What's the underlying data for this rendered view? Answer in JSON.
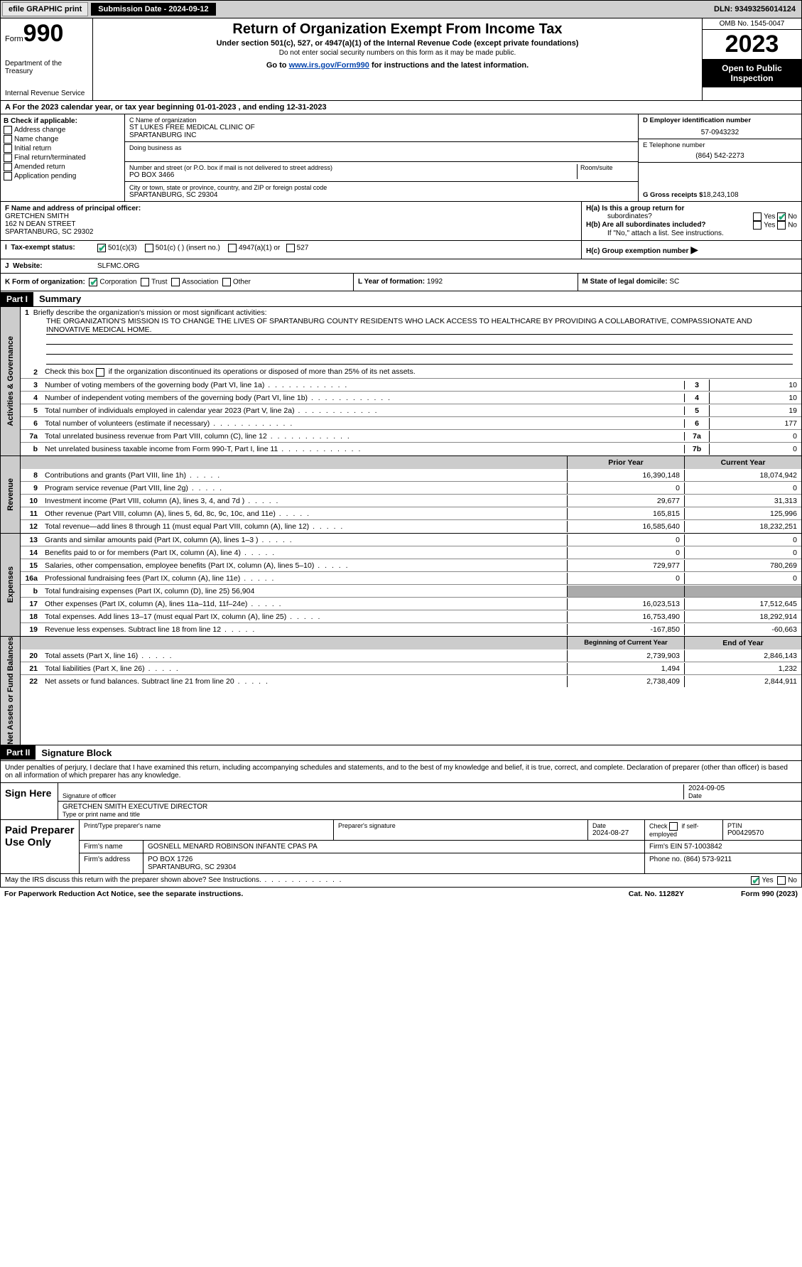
{
  "topbar": {
    "efile_label": "efile GRAPHIC print",
    "submission_label": "Submission Date - 2024-09-12",
    "dln_label": "DLN: 93493256014124"
  },
  "header": {
    "form_label": "Form",
    "form_number": "990",
    "title": "Return of Organization Exempt From Income Tax",
    "subtitle": "Under section 501(c), 527, or 4947(a)(1) of the Internal Revenue Code (except private foundations)",
    "note": "Do not enter social security numbers on this form as it may be made public.",
    "goto_prefix": "Go to ",
    "goto_link": "www.irs.gov/Form990",
    "goto_suffix": " for instructions and the latest information.",
    "dept": "Department of the Treasury",
    "irs": "Internal Revenue Service",
    "omb": "OMB No. 1545-0047",
    "year": "2023",
    "inspect1": "Open to Public",
    "inspect2": "Inspection"
  },
  "period": {
    "prefix": "A  For the 2023 calendar year, or tax year beginning ",
    "start": "01-01-2023",
    "mid": " , and ending ",
    "end": "12-31-2023"
  },
  "boxB": {
    "label": "B Check if applicable:",
    "opts": [
      "Address change",
      "Name change",
      "Initial return",
      "Final return/terminated",
      "Amended return",
      "Application pending"
    ]
  },
  "boxC": {
    "name_label": "C Name of organization",
    "name1": "ST LUKES FREE MEDICAL CLINIC OF",
    "name2": "SPARTANBURG INC",
    "dba_label": "Doing business as",
    "street_label": "Number and street (or P.O. box if mail is not delivered to street address)",
    "room_label": "Room/suite",
    "street": "PO BOX 3466",
    "city_label": "City or town, state or province, country, and ZIP or foreign postal code",
    "city": "SPARTANBURG, SC  29304"
  },
  "boxD": {
    "label": "D Employer identification number",
    "value": "57-0943232"
  },
  "boxE": {
    "label": "E Telephone number",
    "value": "(864) 542-2273"
  },
  "boxG": {
    "label": "G Gross receipts $",
    "value": "18,243,108"
  },
  "boxF": {
    "label": "F Name and address of principal officer:",
    "name": "GRETCHEN SMITH",
    "addr1": "162 N DEAN STREET",
    "addr2": "SPARTANBURG, SC  29302"
  },
  "boxH": {
    "a_label": "H(a)  Is this a group return for",
    "a_label2": "subordinates?",
    "b_label": "H(b)  Are all subordinates included?",
    "b_note": "If \"No,\" attach a list. See instructions.",
    "c_label": "H(c)  Group exemption number ",
    "yes": "Yes",
    "no": "No"
  },
  "boxI": {
    "label": "Tax-exempt status:",
    "c3": "501(c)(3)",
    "c_ins": "501(c) (  ) (insert no.)",
    "a1": "4947(a)(1) or",
    "s527": "527"
  },
  "boxJ": {
    "label": "Website:",
    "value": "SLFMC.ORG"
  },
  "boxK": {
    "label": "K Form of organization:",
    "corp": "Corporation",
    "trust": "Trust",
    "assoc": "Association",
    "other": "Other"
  },
  "boxL": {
    "label": "L Year of formation: ",
    "value": "1992"
  },
  "boxM": {
    "label": "M State of legal domicile: ",
    "value": "SC"
  },
  "parts": {
    "p1": "Part I",
    "p1_title": "Summary",
    "p2": "Part II",
    "p2_title": "Signature Block"
  },
  "summary": {
    "line1_label": "Briefly describe the organization's mission or most significant activities:",
    "mission": "THE ORGANIZATION'S MISSION IS TO CHANGE THE LIVES OF SPARTANBURG COUNTY RESIDENTS WHO LACK ACCESS TO HEALTHCARE BY PROVIDING A COLLABORATIVE, COMPASSIONATE AND INNOVATIVE MEDICAL HOME.",
    "line2": "Check this box      if the organization discontinued its operations or disposed of more than 25% of its net assets.",
    "lines": [
      {
        "n": "3",
        "desc": "Number of voting members of the governing body (Part VI, line 1a)",
        "box": "3",
        "val": "10"
      },
      {
        "n": "4",
        "desc": "Number of independent voting members of the governing body (Part VI, line 1b)",
        "box": "4",
        "val": "10"
      },
      {
        "n": "5",
        "desc": "Total number of individuals employed in calendar year 2023 (Part V, line 2a)",
        "box": "5",
        "val": "19"
      },
      {
        "n": "6",
        "desc": "Total number of volunteers (estimate if necessary)",
        "box": "6",
        "val": "177"
      },
      {
        "n": "7a",
        "desc": "Total unrelated business revenue from Part VIII, column (C), line 12",
        "box": "7a",
        "val": "0"
      },
      {
        "n": "b",
        "desc": "Net unrelated business taxable income from Form 990-T, Part I, line 11",
        "box": "7b",
        "val": "0"
      }
    ],
    "col_prior": "Prior Year",
    "col_current": "Current Year",
    "rev": [
      {
        "n": "8",
        "desc": "Contributions and grants (Part VIII, line 1h)",
        "p": "16,390,148",
        "c": "18,074,942"
      },
      {
        "n": "9",
        "desc": "Program service revenue (Part VIII, line 2g)",
        "p": "0",
        "c": "0"
      },
      {
        "n": "10",
        "desc": "Investment income (Part VIII, column (A), lines 3, 4, and 7d )",
        "p": "29,677",
        "c": "31,313"
      },
      {
        "n": "11",
        "desc": "Other revenue (Part VIII, column (A), lines 5, 6d, 8c, 9c, 10c, and 11e)",
        "p": "165,815",
        "c": "125,996"
      },
      {
        "n": "12",
        "desc": "Total revenue—add lines 8 through 11 (must equal Part VIII, column (A), line 12)",
        "p": "16,585,640",
        "c": "18,232,251"
      }
    ],
    "exp": [
      {
        "n": "13",
        "desc": "Grants and similar amounts paid (Part IX, column (A), lines 1–3 )",
        "p": "0",
        "c": "0"
      },
      {
        "n": "14",
        "desc": "Benefits paid to or for members (Part IX, column (A), line 4)",
        "p": "0",
        "c": "0"
      },
      {
        "n": "15",
        "desc": "Salaries, other compensation, employee benefits (Part IX, column (A), lines 5–10)",
        "p": "729,977",
        "c": "780,269"
      },
      {
        "n": "16a",
        "desc": "Professional fundraising fees (Part IX, column (A), line 11e)",
        "p": "0",
        "c": "0"
      },
      {
        "n": "b",
        "desc": "Total fundraising expenses (Part IX, column (D), line 25) 56,904",
        "grey": true
      },
      {
        "n": "17",
        "desc": "Other expenses (Part IX, column (A), lines 11a–11d, 11f–24e)",
        "p": "16,023,513",
        "c": "17,512,645"
      },
      {
        "n": "18",
        "desc": "Total expenses. Add lines 13–17 (must equal Part IX, column (A), line 25)",
        "p": "16,753,490",
        "c": "18,292,914"
      },
      {
        "n": "19",
        "desc": "Revenue less expenses. Subtract line 18 from line 12",
        "p": "-167,850",
        "c": "-60,663"
      }
    ],
    "col_begin": "Beginning of Current Year",
    "col_end": "End of Year",
    "net": [
      {
        "n": "20",
        "desc": "Total assets (Part X, line 16)",
        "p": "2,739,903",
        "c": "2,846,143"
      },
      {
        "n": "21",
        "desc": "Total liabilities (Part X, line 26)",
        "p": "1,494",
        "c": "1,232"
      },
      {
        "n": "22",
        "desc": "Net assets or fund balances. Subtract line 21 from line 20",
        "p": "2,738,409",
        "c": "2,844,911"
      }
    ]
  },
  "side_labels": {
    "gov": "Activities & Governance",
    "rev": "Revenue",
    "exp": "Expenses",
    "net": "Net Assets or Fund Balances"
  },
  "sig": {
    "perjury": "Under penalties of perjury, I declare that I have examined this return, including accompanying schedules and statements, and to the best of my knowledge and belief, it is true, correct, and complete. Declaration of preparer (other than officer) is based on all information of which preparer has any knowledge.",
    "sign_here": "Sign Here",
    "sig_officer_label": "Signature of officer",
    "date_label": "Date",
    "date1": "2024-09-05",
    "officer_name": "GRETCHEN SMITH  EXECUTIVE DIRECTOR",
    "type_label": "Type or print name and title",
    "paid_label": "Paid Preparer Use Only",
    "prep_name_label": "Print/Type preparer's name",
    "prep_sig_label": "Preparer's signature",
    "date2_label": "Date",
    "date2": "2024-08-27",
    "self_emp": "Check       if self-employed",
    "ptin_label": "PTIN",
    "ptin": "P00429570",
    "firm_name_label": "Firm's name",
    "firm_name": "GOSNELL MENARD ROBINSON INFANTE CPAS PA",
    "firm_ein_label": "Firm's EIN",
    "firm_ein": "57-1003842",
    "firm_addr_label": "Firm's address",
    "firm_addr1": "PO BOX 1726",
    "firm_addr2": "SPARTANBURG, SC  29304",
    "phone_label": "Phone no.",
    "phone": "(864) 573-9211",
    "discuss": "May the IRS discuss this return with the preparer shown above? See Instructions."
  },
  "footer": {
    "paperwork": "For Paperwork Reduction Act Notice, see the separate instructions.",
    "cat": "Cat. No. 11282Y",
    "form": "Form 990 (2023)"
  }
}
